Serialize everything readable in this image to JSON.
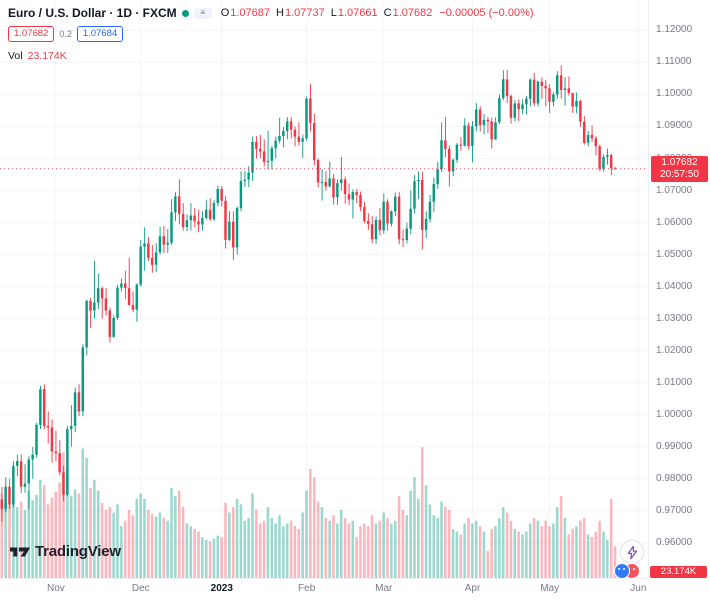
{
  "header": {
    "title": "Euro / U.S. Dollar · 1D · FXCM",
    "o_label": "O",
    "o_value": "1.07687",
    "h_label": "H",
    "h_value": "1.07737",
    "l_label": "L",
    "l_value": "1.07661",
    "c_label": "C",
    "c_value": "1.07682",
    "change_value": "−0.00005 (−0.00%)",
    "sell_price": "1.07682",
    "spread": "0.2",
    "buy_price": "1.07684",
    "vol_label": "Vol",
    "vol_value": "23.174K"
  },
  "price_scale": {
    "last_price_label": "1.07682",
    "countdown": "20:57:50",
    "volume_label": "23.174K"
  },
  "footer": {
    "brand": "TradingView"
  },
  "colors": {
    "up": "#089981",
    "down": "#f23645",
    "vol_up": "rgba(34,171,148,0.45)",
    "vol_down": "rgba(247,82,95,0.42)",
    "accent_blue": "#2962ff",
    "accent_red": "#f23645",
    "axis_text": "#787b86"
  },
  "chart_data": {
    "type": "candlestick",
    "title": "Euro / U.S. Dollar · 1D · FXCM",
    "legend": "candles colored up/down, volume histogram overlay at bottom",
    "y_ticks": [
      0.96,
      0.97,
      0.98,
      0.99,
      1.0,
      1.01,
      1.02,
      1.03,
      1.04,
      1.05,
      1.06,
      1.07,
      1.08,
      1.09,
      1.1,
      1.11,
      1.12
    ],
    "price_range": [
      0.949,
      1.1295
    ],
    "grid": "faint",
    "months": [
      {
        "label": "Nov",
        "index": 14
      },
      {
        "label": "Dec",
        "index": 36
      },
      {
        "label": "2023",
        "index": 57,
        "year": true
      },
      {
        "label": "Feb",
        "index": 79
      },
      {
        "label": "Mar",
        "index": 99
      },
      {
        "label": "Apr",
        "index": 122
      },
      {
        "label": "May",
        "index": 142
      },
      {
        "label": "Jun",
        "index": 165
      }
    ],
    "total_slots": 168,
    "volume_max": 110,
    "last_price": 1.07682,
    "last_volume_k": 23.174,
    "ohlc_current": {
      "open": 1.07687,
      "high": 1.07737,
      "low": 1.07661,
      "close": 1.07682,
      "change": -5e-05,
      "change_pct": "-0.00%"
    },
    "candles": [
      [
        0.9735,
        0.9775,
        0.9665,
        0.9705,
        62
      ],
      [
        0.9705,
        0.9805,
        0.9695,
        0.9775,
        58
      ],
      [
        0.9775,
        0.98,
        0.9705,
        0.972,
        55
      ],
      [
        0.972,
        0.9855,
        0.971,
        0.984,
        60
      ],
      [
        0.984,
        0.9875,
        0.9808,
        0.9855,
        52
      ],
      [
        0.9855,
        0.9876,
        0.9755,
        0.9775,
        56
      ],
      [
        0.9775,
        0.9845,
        0.9756,
        0.9785,
        50
      ],
      [
        0.9785,
        0.987,
        0.9705,
        0.986,
        64
      ],
      [
        0.986,
        0.9899,
        0.98,
        0.9875,
        57
      ],
      [
        0.9875,
        0.9975,
        0.9865,
        0.9968,
        61
      ],
      [
        0.9968,
        1.009,
        0.9955,
        1.008,
        72
      ],
      [
        1.008,
        1.0095,
        0.9955,
        0.9965,
        68
      ],
      [
        0.9965,
        1.001,
        0.991,
        0.996,
        54
      ],
      [
        0.996,
        0.9985,
        0.985,
        0.9885,
        59
      ],
      [
        0.9885,
        0.995,
        0.9855,
        0.988,
        63
      ],
      [
        0.988,
        0.992,
        0.981,
        0.982,
        70
      ],
      [
        0.982,
        0.984,
        0.973,
        0.975,
        92
      ],
      [
        0.975,
        0.9965,
        0.9745,
        0.9955,
        78
      ],
      [
        0.9955,
        1.003,
        0.99,
        0.9965,
        60
      ],
      [
        0.9965,
        1.0085,
        0.9945,
        1.007,
        65
      ],
      [
        1.007,
        1.0095,
        0.9995,
        1.001,
        62
      ],
      [
        1.001,
        1.022,
        0.9995,
        1.021,
        95
      ],
      [
        1.021,
        1.036,
        1.0185,
        1.0355,
        88
      ],
      [
        1.0355,
        1.0365,
        1.027,
        1.0325,
        66
      ],
      [
        1.0325,
        1.048,
        1.03,
        1.035,
        72
      ],
      [
        1.035,
        1.044,
        1.033,
        1.0395,
        64
      ],
      [
        1.0395,
        1.04,
        1.03,
        1.0363,
        55
      ],
      [
        1.0363,
        1.0395,
        1.031,
        1.0325,
        50
      ],
      [
        1.0325,
        1.0335,
        1.0225,
        1.0243,
        52
      ],
      [
        1.0243,
        1.031,
        1.024,
        1.0302,
        48
      ],
      [
        1.0302,
        1.0405,
        1.0295,
        1.0397,
        54
      ],
      [
        1.0397,
        1.0425,
        1.0385,
        1.041,
        38
      ],
      [
        1.041,
        1.045,
        1.036,
        1.0395,
        42
      ],
      [
        1.0395,
        1.049,
        1.034,
        1.0343,
        50
      ],
      [
        1.0343,
        1.0385,
        1.032,
        1.0328,
        46
      ],
      [
        1.0328,
        1.041,
        1.029,
        1.0406,
        58
      ],
      [
        1.0406,
        1.0545,
        1.04,
        1.0525,
        62
      ],
      [
        1.0525,
        1.0585,
        1.045,
        1.0535,
        58
      ],
      [
        1.0535,
        1.0555,
        1.048,
        1.049,
        50
      ],
      [
        1.049,
        1.053,
        1.0443,
        1.0468,
        47
      ],
      [
        1.0468,
        1.0535,
        1.0445,
        1.0507,
        45
      ],
      [
        1.0507,
        1.0587,
        1.05,
        1.0557,
        48
      ],
      [
        1.0557,
        1.0589,
        1.0505,
        1.0531,
        44
      ],
      [
        1.0531,
        1.058,
        1.0506,
        1.0537,
        42
      ],
      [
        1.0537,
        1.0673,
        1.053,
        1.0632,
        66
      ],
      [
        1.0632,
        1.0695,
        1.0605,
        1.0682,
        60
      ],
      [
        1.0682,
        1.0735,
        1.0595,
        1.0627,
        64
      ],
      [
        1.0627,
        1.066,
        1.0575,
        1.0586,
        52
      ],
      [
        1.0586,
        1.0625,
        1.0573,
        1.0607,
        40
      ],
      [
        1.0607,
        1.066,
        1.0575,
        1.0622,
        38
      ],
      [
        1.0622,
        1.0645,
        1.0585,
        1.0604,
        36
      ],
      [
        1.0604,
        1.064,
        1.057,
        1.0594,
        34
      ],
      [
        1.0594,
        1.0635,
        1.0575,
        1.0614,
        30
      ],
      [
        1.0614,
        1.067,
        1.061,
        1.064,
        28
      ],
      [
        1.064,
        1.0675,
        1.0605,
        1.061,
        27
      ],
      [
        1.061,
        1.067,
        1.0605,
        1.0661,
        29
      ],
      [
        1.0661,
        1.0715,
        1.065,
        1.0705,
        31
      ],
      [
        1.0705,
        1.0714,
        1.065,
        1.0668,
        30
      ],
      [
        1.0668,
        1.0683,
        1.0519,
        1.0546,
        55
      ],
      [
        1.0546,
        1.0635,
        1.0542,
        1.0603,
        48
      ],
      [
        1.0603,
        1.0635,
        1.0483,
        1.0522,
        52
      ],
      [
        1.0522,
        1.065,
        1.05,
        1.0645,
        58
      ],
      [
        1.0645,
        1.076,
        1.0635,
        1.073,
        54
      ],
      [
        1.073,
        1.0761,
        1.0711,
        1.0734,
        42
      ],
      [
        1.0734,
        1.0776,
        1.071,
        1.0756,
        44
      ],
      [
        1.0756,
        1.0868,
        1.073,
        1.0852,
        62
      ],
      [
        1.0852,
        1.087,
        1.08,
        1.083,
        50
      ],
      [
        1.083,
        1.0874,
        1.0801,
        1.0822,
        40
      ],
      [
        1.0822,
        1.086,
        1.0775,
        1.0789,
        42
      ],
      [
        1.0789,
        1.0887,
        1.0766,
        1.0793,
        52
      ],
      [
        1.0793,
        1.084,
        1.0766,
        1.0832,
        44
      ],
      [
        1.0832,
        1.0868,
        1.0802,
        1.0856,
        40
      ],
      [
        1.0856,
        1.0927,
        1.0848,
        1.087,
        46
      ],
      [
        1.087,
        1.0898,
        1.0835,
        1.0886,
        38
      ],
      [
        1.0886,
        1.0929,
        1.086,
        1.0916,
        40
      ],
      [
        1.0916,
        1.093,
        1.0862,
        1.089,
        42
      ],
      [
        1.089,
        1.09,
        1.0838,
        1.0868,
        38
      ],
      [
        1.0868,
        1.0913,
        1.084,
        1.0852,
        36
      ],
      [
        1.0852,
        1.0875,
        1.0802,
        1.0863,
        48
      ],
      [
        1.0863,
        1.0993,
        1.0855,
        1.0987,
        64
      ],
      [
        1.0987,
        1.1033,
        1.0885,
        1.0911,
        80
      ],
      [
        1.0911,
        1.094,
        1.078,
        1.0795,
        74
      ],
      [
        1.0795,
        1.08,
        1.0709,
        1.0725,
        56
      ],
      [
        1.0725,
        1.0766,
        1.0669,
        1.0727,
        52
      ],
      [
        1.0727,
        1.076,
        1.07,
        1.0713,
        44
      ],
      [
        1.0713,
        1.0791,
        1.071,
        1.0738,
        42
      ],
      [
        1.0738,
        1.0752,
        1.0656,
        1.0679,
        46
      ],
      [
        1.0679,
        1.0735,
        1.0655,
        1.0723,
        40
      ],
      [
        1.0723,
        1.0804,
        1.07,
        1.0735,
        50
      ],
      [
        1.0735,
        1.0744,
        1.0659,
        1.0689,
        44
      ],
      [
        1.0689,
        1.0722,
        1.0655,
        1.0672,
        40
      ],
      [
        1.0672,
        1.0704,
        1.0613,
        1.0695,
        42
      ],
      [
        1.0695,
        1.0705,
        1.066,
        1.0686,
        30
      ],
      [
        1.0686,
        1.0697,
        1.0636,
        1.0648,
        38
      ],
      [
        1.0648,
        1.0665,
        1.0598,
        1.0605,
        40
      ],
      [
        1.0605,
        1.0629,
        1.0577,
        1.0595,
        38
      ],
      [
        1.0595,
        1.062,
        1.0536,
        1.0548,
        46
      ],
      [
        1.0548,
        1.0619,
        1.0533,
        1.0608,
        40
      ],
      [
        1.0608,
        1.0645,
        1.056,
        1.0576,
        42
      ],
      [
        1.0576,
        1.0691,
        1.0565,
        1.0665,
        48
      ],
      [
        1.0665,
        1.0673,
        1.0575,
        1.0597,
        44
      ],
      [
        1.0597,
        1.0638,
        1.0588,
        1.0635,
        40
      ],
      [
        1.0635,
        1.0694,
        1.062,
        1.0681,
        42
      ],
      [
        1.0681,
        1.0695,
        1.0532,
        1.0548,
        60
      ],
      [
        1.0548,
        1.0578,
        1.0524,
        1.0545,
        50
      ],
      [
        1.0545,
        1.06,
        1.0535,
        1.0581,
        46
      ],
      [
        1.0581,
        1.0701,
        1.0563,
        1.0643,
        64
      ],
      [
        1.0643,
        1.0749,
        1.0628,
        1.0729,
        74
      ],
      [
        1.0729,
        1.076,
        1.0674,
        1.0733,
        58
      ],
      [
        1.0733,
        1.0759,
        1.0516,
        1.0577,
        96
      ],
      [
        1.0577,
        1.0635,
        1.0551,
        1.0611,
        68
      ],
      [
        1.0611,
        1.0686,
        1.0601,
        1.0665,
        54
      ],
      [
        1.0665,
        1.074,
        1.0632,
        1.072,
        46
      ],
      [
        1.072,
        1.0789,
        1.0705,
        1.0766,
        44
      ],
      [
        1.0766,
        1.0912,
        1.0758,
        1.0857,
        56
      ],
      [
        1.0857,
        1.093,
        1.0804,
        1.083,
        52
      ],
      [
        1.083,
        1.084,
        1.0713,
        1.076,
        50
      ],
      [
        1.076,
        1.08,
        1.0744,
        1.0796,
        36
      ],
      [
        1.0796,
        1.0849,
        1.0786,
        1.0843,
        34
      ],
      [
        1.0843,
        1.0867,
        1.0824,
        1.0841,
        32
      ],
      [
        1.0841,
        1.0926,
        1.0837,
        1.0903,
        40
      ],
      [
        1.0903,
        1.0913,
        1.0828,
        1.0839,
        44
      ],
      [
        1.0839,
        1.0917,
        1.0788,
        1.09,
        40
      ],
      [
        1.09,
        1.0973,
        1.0885,
        1.0953,
        42
      ],
      [
        1.0953,
        1.0963,
        1.0884,
        1.0904,
        38
      ],
      [
        1.0904,
        1.0938,
        1.0875,
        1.0921,
        34
      ],
      [
        1.0921,
        1.093,
        1.088,
        1.0916,
        20
      ],
      [
        1.0916,
        1.0928,
        1.0831,
        1.086,
        36
      ],
      [
        1.086,
        1.0929,
        1.0858,
        1.0913,
        38
      ],
      [
        1.0913,
        1.1,
        1.0908,
        1.0989,
        44
      ],
      [
        1.0989,
        1.1075,
        1.0982,
        1.1047,
        52
      ],
      [
        1.1047,
        1.1076,
        1.0973,
        1.0995,
        48
      ],
      [
        1.0995,
        1.1,
        1.0909,
        1.0927,
        42
      ],
      [
        1.0927,
        1.0983,
        1.0916,
        1.0972,
        36
      ],
      [
        1.0972,
        1.0985,
        1.0917,
        1.0954,
        34
      ],
      [
        1.0954,
        1.0985,
        1.0938,
        1.0969,
        32
      ],
      [
        1.0969,
        1.0995,
        1.0937,
        1.0987,
        34
      ],
      [
        1.0987,
        1.105,
        1.0963,
        1.1046,
        40
      ],
      [
        1.1046,
        1.1067,
        1.0964,
        1.0972,
        44
      ],
      [
        1.0972,
        1.1043,
        1.0962,
        1.104,
        42
      ],
      [
        1.104,
        1.1054,
        1.0986,
        1.1027,
        38
      ],
      [
        1.1027,
        1.1046,
        1.0963,
        1.1019,
        42
      ],
      [
        1.1019,
        1.1032,
        1.0942,
        1.0977,
        38
      ],
      [
        1.0977,
        1.1007,
        1.0963,
        1.1,
        40
      ],
      [
        1.1,
        1.1073,
        1.0986,
        1.106,
        52
      ],
      [
        1.106,
        1.1091,
        1.0987,
        1.1014,
        60
      ],
      [
        1.1014,
        1.1055,
        1.0965,
        1.1019,
        44
      ],
      [
        1.1019,
        1.1056,
        1.0996,
        1.1004,
        32
      ],
      [
        1.1004,
        1.1006,
        1.0942,
        1.0962,
        36
      ],
      [
        0.0,
        0,
        0,
        0,
        0
      ],
      [
        1.098,
        1.0984,
        1.0899,
        1.0915,
        42
      ],
      [
        1.0915,
        1.0932,
        1.0843,
        1.0849,
        44
      ],
      [
        1.0849,
        1.0886,
        1.0838,
        1.0873,
        32
      ],
      [
        1.0873,
        1.0904,
        1.0852,
        1.0863,
        30
      ],
      [
        1.0863,
        1.0871,
        1.081,
        1.0838,
        34
      ],
      [
        1.0838,
        1.0843,
        1.076,
        1.0768,
        42
      ],
      [
        1.0768,
        1.0813,
        1.0759,
        1.0805,
        34
      ],
      [
        1.0805,
        1.0831,
        1.0781,
        1.0811,
        28
      ],
      [
        1.0811,
        1.0815,
        1.0748,
        1.077,
        58
      ],
      [
        1.07687,
        1.07737,
        1.07661,
        1.07682,
        23.174
      ]
    ],
    "candle_placeholder_fix": [
      1.0962,
      1.1006,
      1.0941,
      1.098,
      38
    ]
  }
}
